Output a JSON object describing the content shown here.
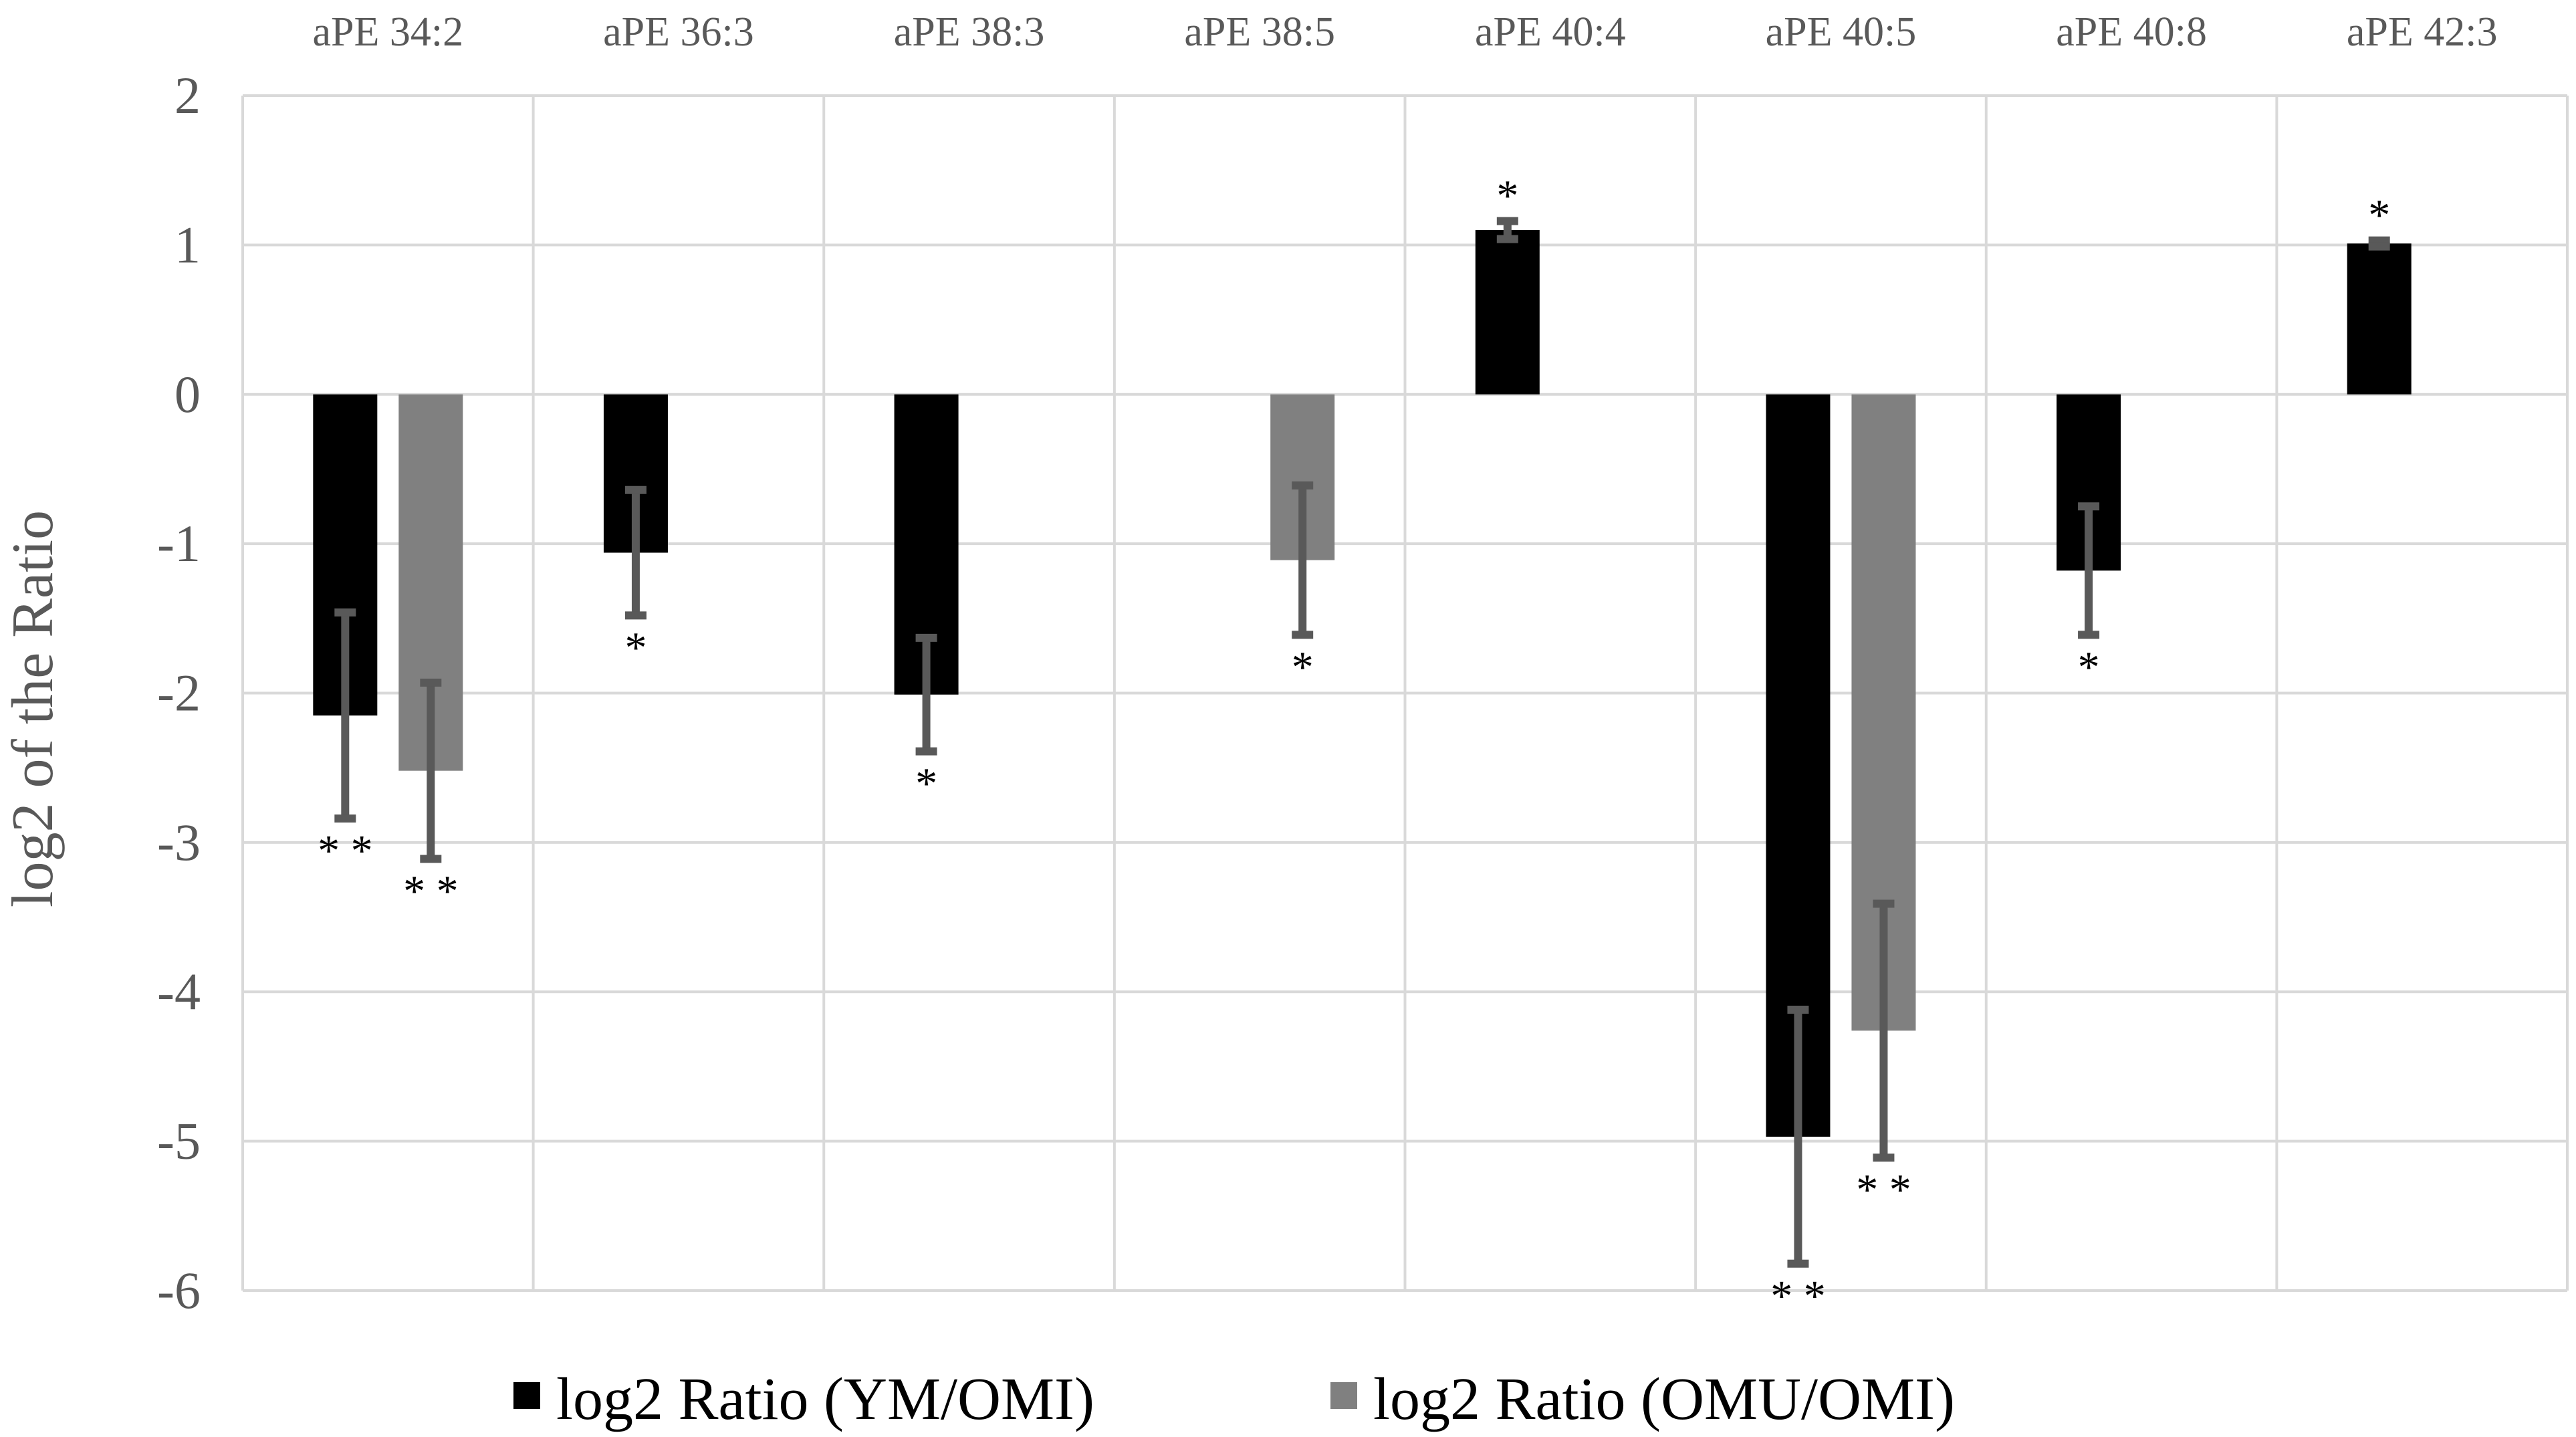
{
  "chart_data": {
    "type": "bar",
    "title": "",
    "xlabel": "",
    "ylabel": "log2 of the Ratio",
    "ylim": [
      -6,
      2
    ],
    "yticks": [
      2,
      1,
      0,
      -1,
      -2,
      -3,
      -4,
      -5,
      -6
    ],
    "categories": [
      "aPE 34:2",
      "aPE 36:3",
      "aPE 38:3",
      "aPE 38:5",
      "aPE 40:4",
      "aPE 40:5",
      "aPE 40:8",
      "aPE 42:3"
    ],
    "category_axis_position": "top",
    "grid": true,
    "legend_position": "bottom",
    "series": [
      {
        "name": "log2 Ratio (YM/OMI)",
        "color": "#000000",
        "values": [
          -2.15,
          -1.06,
          -2.01,
          null,
          1.1,
          -4.97,
          -1.18,
          1.01
        ],
        "error": [
          0.69,
          0.42,
          0.38,
          null,
          0.06,
          0.85,
          0.43,
          0.02
        ],
        "significance": [
          "**",
          "*",
          "*",
          "",
          "*",
          "**",
          "*",
          "*"
        ]
      },
      {
        "name": "log2 Ratio (OMU/OMI)",
        "color": "#808080",
        "values": [
          -2.52,
          null,
          null,
          -1.11,
          null,
          -4.26,
          null,
          null
        ],
        "error": [
          0.59,
          null,
          null,
          0.5,
          null,
          0.85,
          null,
          null
        ],
        "significance": [
          "**",
          "",
          "",
          "*",
          "",
          "**",
          "",
          ""
        ]
      }
    ],
    "error_bar_color": "#595959"
  }
}
